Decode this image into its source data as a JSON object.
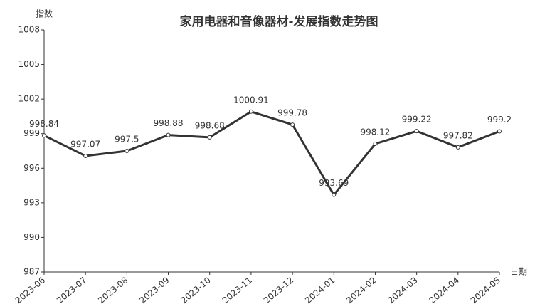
{
  "chart_data": {
    "type": "line",
    "title": "家用电器和音像器材-发展指数走势图",
    "x_label": "日期",
    "y_label": "指数",
    "categories": [
      "2023-06",
      "2023-07",
      "2023-08",
      "2023-09",
      "2023-10",
      "2023-11",
      "2023-12",
      "2024-01",
      "2024-02",
      "2024-03",
      "2024-04",
      "2024-05"
    ],
    "values": [
      998.84,
      997.07,
      997.5,
      998.88,
      998.68,
      1000.91,
      999.78,
      993.69,
      998.12,
      999.22,
      997.82,
      999.2
    ],
    "color": "#333333",
    "ylim": [
      987,
      1008
    ],
    "yticks": [
      987,
      990,
      993,
      996,
      999,
      1002,
      1005,
      1008
    ],
    "grid": false
  }
}
